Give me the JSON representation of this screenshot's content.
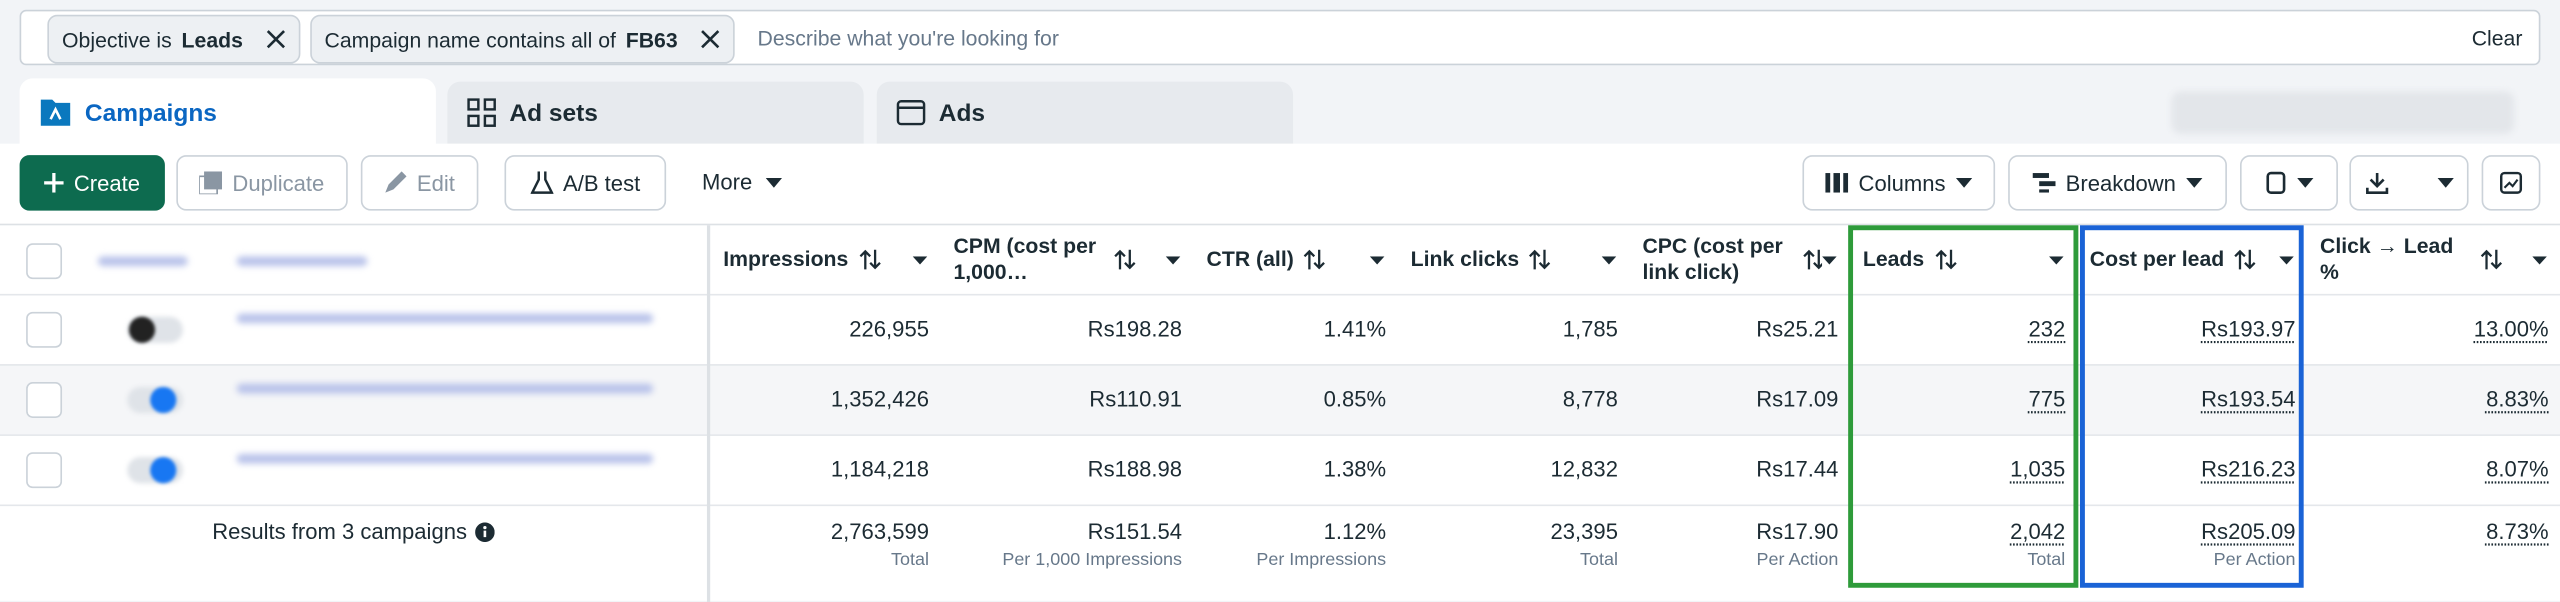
{
  "filters": [
    {
      "label": "Objective is",
      "value": "Leads"
    },
    {
      "label": "Campaign name contains all of",
      "value": "FB63"
    }
  ],
  "search_placeholder": "Describe what you're looking for",
  "clear": "Clear",
  "tabs": [
    "Campaigns",
    "Ad sets",
    "Ads"
  ],
  "toolbar": {
    "create": "Create",
    "duplicate": "Duplicate",
    "edit": "Edit",
    "ab_test": "A/B test",
    "more": "More",
    "columns": "Columns",
    "breakdown": "Breakdown"
  },
  "table": {
    "columns": [
      "Impressions",
      "CPM (cost per 1,000…",
      "CTR (all)",
      "Link clicks",
      "CPC (cost per link click)",
      "Leads",
      "Cost per lead",
      "Click → Lead %"
    ],
    "rows": [
      [
        "226,955",
        "Rs198.28",
        "1.41%",
        "1,785",
        "Rs25.21",
        "232",
        "Rs193.97",
        "13.00%"
      ],
      [
        "1,352,426",
        "Rs110.91",
        "0.85%",
        "8,778",
        "Rs17.09",
        "775",
        "Rs193.54",
        "8.83%"
      ],
      [
        "1,184,218",
        "Rs188.98",
        "1.38%",
        "12,832",
        "Rs17.44",
        "1,035",
        "Rs216.23",
        "8.07%"
      ]
    ],
    "summary": {
      "label": "Results from 3 campaigns",
      "cells": [
        {
          "value": "2,763,599",
          "note": "Total"
        },
        {
          "value": "Rs151.54",
          "note": "Per 1,000 Impressions"
        },
        {
          "value": "1.12%",
          "note": "Per Impressions"
        },
        {
          "value": "23,395",
          "note": "Total"
        },
        {
          "value": "Rs17.90",
          "note": "Per Action"
        },
        {
          "value": "2,042",
          "note": "Total"
        },
        {
          "value": "Rs205.09",
          "note": "Per Action"
        },
        {
          "value": "8.73%"
        }
      ]
    }
  }
}
